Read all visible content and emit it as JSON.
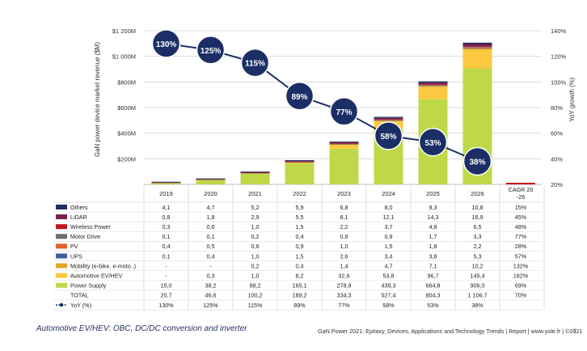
{
  "chart_data": {
    "type": "bar",
    "stacked": true,
    "categories": [
      "2019",
      "2020",
      "2021",
      "2022",
      "2023",
      "2024",
      "2025",
      "2026"
    ],
    "extra_column": "CAGR 20-26",
    "ylabel": "GaN power device market revenue ($M)",
    "y2label": "YoY growth (%)",
    "ylim": [
      0,
      1200
    ],
    "y_ticks": [
      "$1 200M",
      "$1 000M",
      "$800M",
      "$600M",
      "$400M",
      "$200M"
    ],
    "y2lim": [
      20,
      140
    ],
    "y2_ticks": [
      "140%",
      "120%",
      "100%",
      "80%",
      "60%",
      "40%",
      "20%"
    ],
    "grid": true,
    "series": [
      {
        "name": "Others",
        "color": "#1f2d5c",
        "values": [
          4.1,
          4.7,
          5.2,
          5.9,
          6.8,
          8.0,
          9.3,
          10.8
        ],
        "labels": [
          "4,1",
          "4,7",
          "5,2",
          "5,9",
          "6,8",
          "8,0",
          "9,3",
          "10,8"
        ],
        "cagr": "15%"
      },
      {
        "name": "LiDAR",
        "color": "#7a1f4c",
        "values": [
          0.8,
          1.8,
          2.9,
          5.5,
          8.1,
          12.1,
          14.3,
          16.9
        ],
        "labels": [
          "0,8",
          "1,8",
          "2,9",
          "5,5",
          "8,1",
          "12,1",
          "14,3",
          "16,9"
        ],
        "cagr": "45%"
      },
      {
        "name": "Wireless Power",
        "color": "#c0161d",
        "values": [
          0.3,
          0.6,
          1.0,
          1.5,
          2.2,
          3.7,
          4.8,
          6.5
        ],
        "labels": [
          "0,3",
          "0,6",
          "1,0",
          "1,5",
          "2,2",
          "3,7",
          "4,8",
          "6,5"
        ],
        "cagr": "48%"
      },
      {
        "name": "Motor Drive",
        "color": "#6d6d6d",
        "values": [
          0.1,
          0.1,
          0.2,
          0.4,
          0.6,
          0.9,
          1.7,
          3.3
        ],
        "labels": [
          "0,1",
          "0,1",
          "0,2",
          "0,4",
          "0,6",
          "0,9",
          "1,7",
          "3,3"
        ],
        "cagr": "77%"
      },
      {
        "name": "PV",
        "color": "#e0622a",
        "values": [
          0.4,
          0.5,
          0.6,
          0.9,
          1.0,
          1.5,
          1.8,
          2.2
        ],
        "labels": [
          "0,4",
          "0,5",
          "0,6",
          "0,9",
          "1,0",
          "1,5",
          "1,8",
          "2,2"
        ],
        "cagr": "28%"
      },
      {
        "name": "UPS",
        "color": "#3f5f9e",
        "values": [
          0.1,
          0.4,
          1.0,
          1.5,
          2.6,
          3.4,
          3.8,
          5.3
        ],
        "labels": [
          "0,1",
          "0,4",
          "1,0",
          "1,5",
          "2,6",
          "3,4",
          "3,8",
          "5,3"
        ],
        "cagr": "57%"
      },
      {
        "name": "Mobility (e-bike, e-moto..)",
        "color": "#e3a62a",
        "values": [
          0,
          0,
          0.2,
          0.4,
          1.4,
          4.7,
          7.1,
          10.2
        ],
        "labels": [
          "-",
          "-",
          "0,2",
          "0,4",
          "1,4",
          "4,7",
          "7,1",
          "10,2"
        ],
        "cagr": "132%"
      },
      {
        "name": "Automotive EV/HEV",
        "color": "#fbc93f",
        "values": [
          0,
          0.3,
          1.0,
          8.2,
          32.6,
          53.8,
          96.7,
          145.4
        ],
        "labels": [
          "-",
          "0,3",
          "1,0",
          "8,2",
          "32,6",
          "53,8",
          "96,7",
          "145,4"
        ],
        "cagr": "182%"
      },
      {
        "name": "Power Supply",
        "color": "#bfd849",
        "values": [
          15.0,
          38.2,
          88.2,
          165.1,
          278.9,
          439.3,
          664.8,
          906.0
        ],
        "labels": [
          "15,0",
          "38,2",
          "88,2",
          "165,1",
          "278,9",
          "439,3",
          "664,8",
          "906,0"
        ],
        "cagr": "69%"
      }
    ],
    "total": {
      "name": "TOTAL",
      "values": [
        20.7,
        46.6,
        100.2,
        189.2,
        334.3,
        527.4,
        804.3,
        1106.7
      ],
      "labels": [
        "20,7",
        "46,6",
        "100,2",
        "189,2",
        "334,3",
        "527,4",
        "804,3",
        "1 106,7"
      ],
      "cagr": "70%"
    },
    "yoy": {
      "name": "YoY (%)",
      "color": "#1b2f66",
      "values": [
        130,
        125,
        115,
        89,
        77,
        58,
        53,
        38
      ],
      "labels": [
        "130%",
        "125%",
        "115%",
        "89%",
        "77%",
        "58%",
        "53%",
        "38%"
      ]
    }
  },
  "footer": {
    "caption": "Automotive EV/HEV: OBC, DC/DC conversion and inverter",
    "source": "GaN Power 2021: Epitaxy, Devices, Applications and Technology Trends | Report | www.yole.fr | ©2021",
    "separator": "|"
  }
}
